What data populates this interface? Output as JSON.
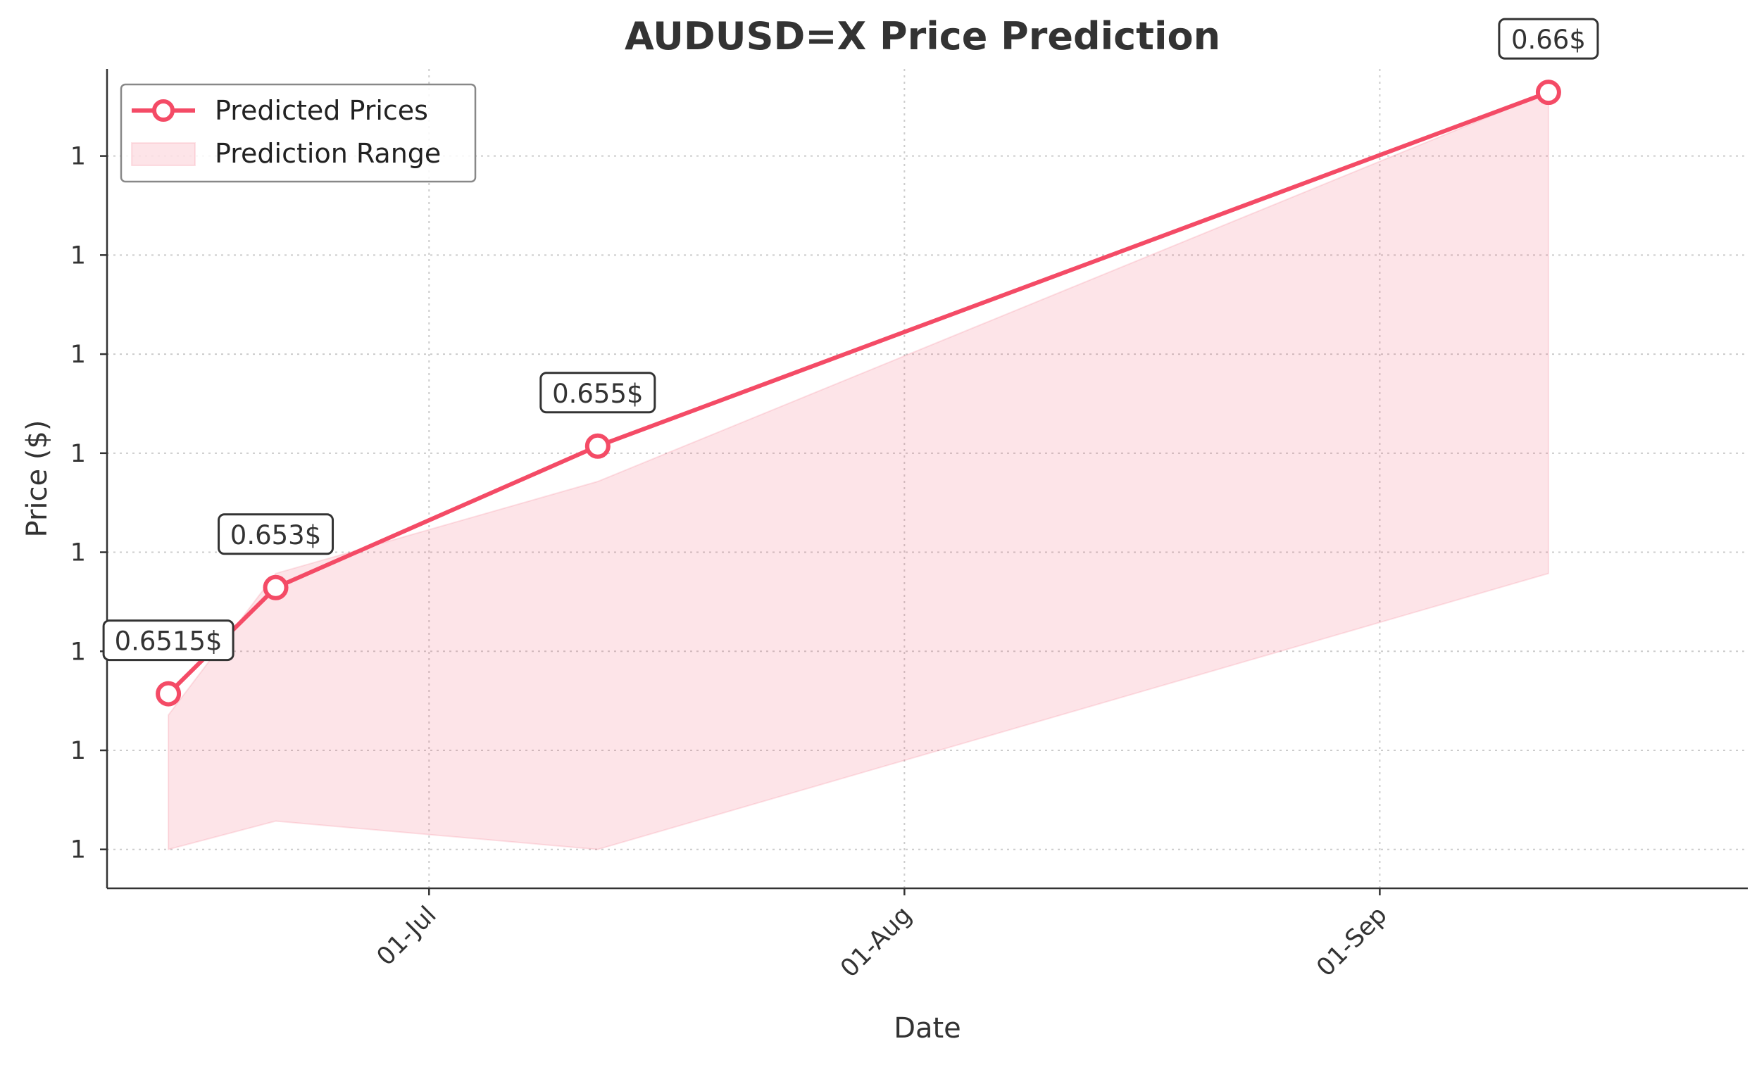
{
  "chart_data": {
    "type": "line",
    "title": "AUDUSD=X Price Prediction",
    "xlabel": "Date",
    "ylabel": "Price ($)",
    "x_ticks": [
      {
        "date": "2024-07-01",
        "label": "01-Jul"
      },
      {
        "date": "2024-08-01",
        "label": "01-Aug"
      },
      {
        "date": "2024-09-01",
        "label": "01-Sep"
      }
    ],
    "y_ticks": [
      {
        "value": 0.6493,
        "label": "1"
      },
      {
        "value": 0.6507,
        "label": "1"
      },
      {
        "value": 0.6521,
        "label": "1"
      },
      {
        "value": 0.6535,
        "label": "1"
      },
      {
        "value": 0.6549,
        "label": "1"
      },
      {
        "value": 0.6563,
        "label": "1"
      },
      {
        "value": 0.6577,
        "label": "1"
      },
      {
        "value": 0.6591,
        "label": "1"
      }
    ],
    "xlim": [
      "2024-06-10",
      "2024-09-25"
    ],
    "ylim": [
      0.64875,
      0.66033
    ],
    "grid": true,
    "legend_position": "top-left",
    "series": [
      {
        "name": "Predicted Prices",
        "color": "#f44b66",
        "x": [
          "2024-06-14",
          "2024-06-21",
          "2024-07-12",
          "2024-09-12"
        ],
        "y": [
          0.6515,
          0.653,
          0.655,
          0.66
        ],
        "labels": [
          "0.6515$",
          "0.653$",
          "0.655$",
          "0.66$"
        ]
      }
    ],
    "range": {
      "name": "Prediction Range",
      "color": "#f44b66",
      "x": [
        "2024-06-14",
        "2024-06-21",
        "2024-07-12",
        "2024-09-12"
      ],
      "lower": [
        0.6493,
        0.6497,
        0.6493,
        0.6532
      ],
      "upper": [
        0.6512,
        0.6532,
        0.6545,
        0.66
      ]
    }
  }
}
